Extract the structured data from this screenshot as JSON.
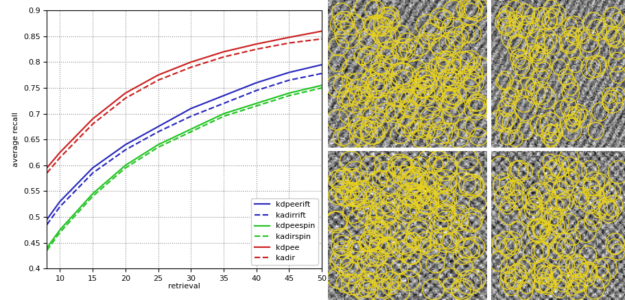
{
  "chart_data": {
    "type": "line",
    "x_label": "retrieval",
    "y_label": "average recall",
    "x": [
      8,
      10,
      15,
      20,
      25,
      30,
      35,
      40,
      45,
      50
    ],
    "series": [
      {
        "name": "kdpeerift",
        "color": "#2b2bc0",
        "line_style": "solid",
        "values": [
          0.495,
          0.53,
          0.595,
          0.64,
          0.675,
          0.71,
          0.735,
          0.76,
          0.78,
          0.795
        ]
      },
      {
        "name": "kadirrift",
        "color": "#2b2bc0",
        "line_style": "dashed",
        "values": [
          0.485,
          0.52,
          0.585,
          0.63,
          0.665,
          0.695,
          0.72,
          0.745,
          0.765,
          0.778
        ]
      },
      {
        "name": "kdpeespin",
        "color": "#22c422",
        "line_style": "solid",
        "values": [
          0.44,
          0.475,
          0.545,
          0.6,
          0.64,
          0.67,
          0.7,
          0.72,
          0.74,
          0.755
        ]
      },
      {
        "name": "kadirspin",
        "color": "#22c422",
        "line_style": "dashed",
        "values": [
          0.435,
          0.47,
          0.54,
          0.595,
          0.635,
          0.665,
          0.695,
          0.715,
          0.735,
          0.75
        ]
      },
      {
        "name": "kdpee",
        "color": "#cc2222",
        "line_style": "solid",
        "values": [
          0.595,
          0.625,
          0.69,
          0.74,
          0.775,
          0.8,
          0.82,
          0.835,
          0.848,
          0.86
        ]
      },
      {
        "name": "kadir",
        "color": "#cc2222",
        "line_style": "dashed",
        "values": [
          0.585,
          0.615,
          0.68,
          0.73,
          0.765,
          0.79,
          0.81,
          0.825,
          0.837,
          0.845
        ]
      }
    ],
    "xlim": [
      8,
      50
    ],
    "ylim": [
      0.4,
      0.9
    ],
    "xticks": [
      10,
      15,
      20,
      25,
      30,
      35,
      40,
      45,
      50
    ],
    "yticks": [
      0.4,
      0.45,
      0.5,
      0.55,
      0.6,
      0.65,
      0.7,
      0.75,
      0.8,
      0.85,
      0.9
    ],
    "grid": true,
    "legend": "lower right"
  }
}
